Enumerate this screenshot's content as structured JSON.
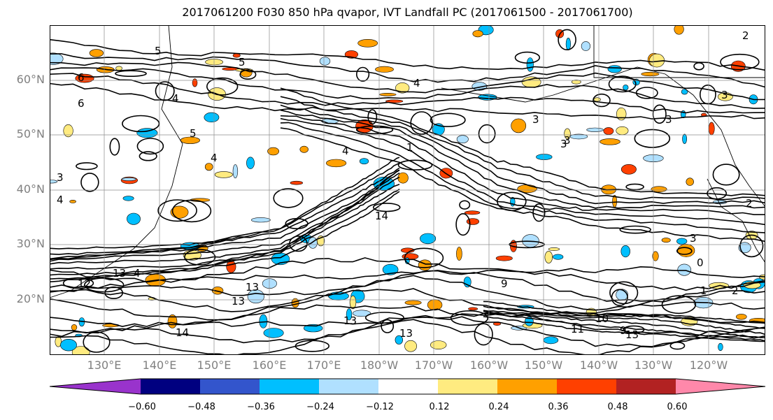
{
  "title": "2017061200 F030 850 hPa qvapor, IVT Landfall PC (2017061500 - 2017061700)",
  "lat_labels": [
    "60°N",
    "50°N",
    "40°N",
    "30°N",
    "20°N"
  ],
  "lon_labels": [
    "130°E",
    "140°E",
    "150°E",
    "160°E",
    "170°E",
    "180°W",
    "170°W",
    "160°W",
    "150°W",
    "140°W",
    "130°W",
    "120°W"
  ],
  "colorbar": {
    "colors": [
      "#9933cc",
      "#000080",
      "#3355cc",
      "#00bfff",
      "#b0e0ff",
      "#ffffff",
      "#ffeb80",
      "#ffa000",
      "#ff4000",
      "#b22222",
      "#ff88aa"
    ],
    "ticks": [
      "−0.60",
      "−0.48",
      "−0.36",
      "−0.24",
      "−0.12",
      "0.12",
      "0.24",
      "0.36",
      "0.48",
      "0.60"
    ]
  },
  "contour_labels": [
    "5",
    "4",
    "3",
    "3",
    "4",
    "3",
    "2",
    "3",
    "5",
    "6",
    "4",
    "4",
    "3",
    "4",
    "4",
    "3",
    "2",
    "14",
    "13",
    "12",
    "13",
    "14",
    "13",
    "13",
    "13",
    "9",
    "11",
    "10",
    "13",
    "9",
    "2",
    "0",
    "1",
    "1",
    "3",
    "6",
    "5"
  ],
  "grid": true
}
